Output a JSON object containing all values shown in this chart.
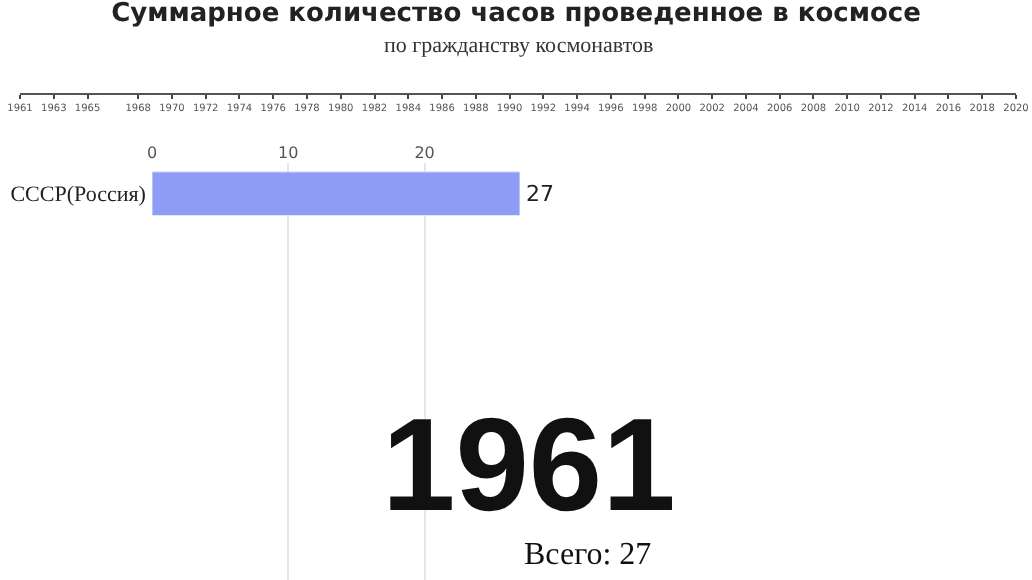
{
  "chart_data": {
    "type": "bar",
    "orientation": "horizontal",
    "title": "Суммарное количество часов проведенное в космосе",
    "subtitle": "по гражданству космонавтов",
    "categories": [
      "СССР(Россия)"
    ],
    "values": [
      27
    ],
    "color": "#8e9cf7",
    "data_labels": true,
    "xlim": [
      0,
      27
    ],
    "xticks": [
      0,
      10,
      20
    ],
    "grid": "x",
    "x2lim": [
      1961,
      2020
    ],
    "x2ticks": [
      1961,
      1963,
      1965,
      1968,
      1970,
      1972,
      1974,
      1976,
      1978,
      1980,
      1982,
      1984,
      1986,
      1988,
      1990,
      1992,
      1994,
      1996,
      1998,
      2000,
      2002,
      2004,
      2006,
      2008,
      2010,
      2012,
      2014,
      2016,
      2018,
      2020
    ],
    "annotations": [
      "1961",
      "Всего: 27"
    ]
  }
}
